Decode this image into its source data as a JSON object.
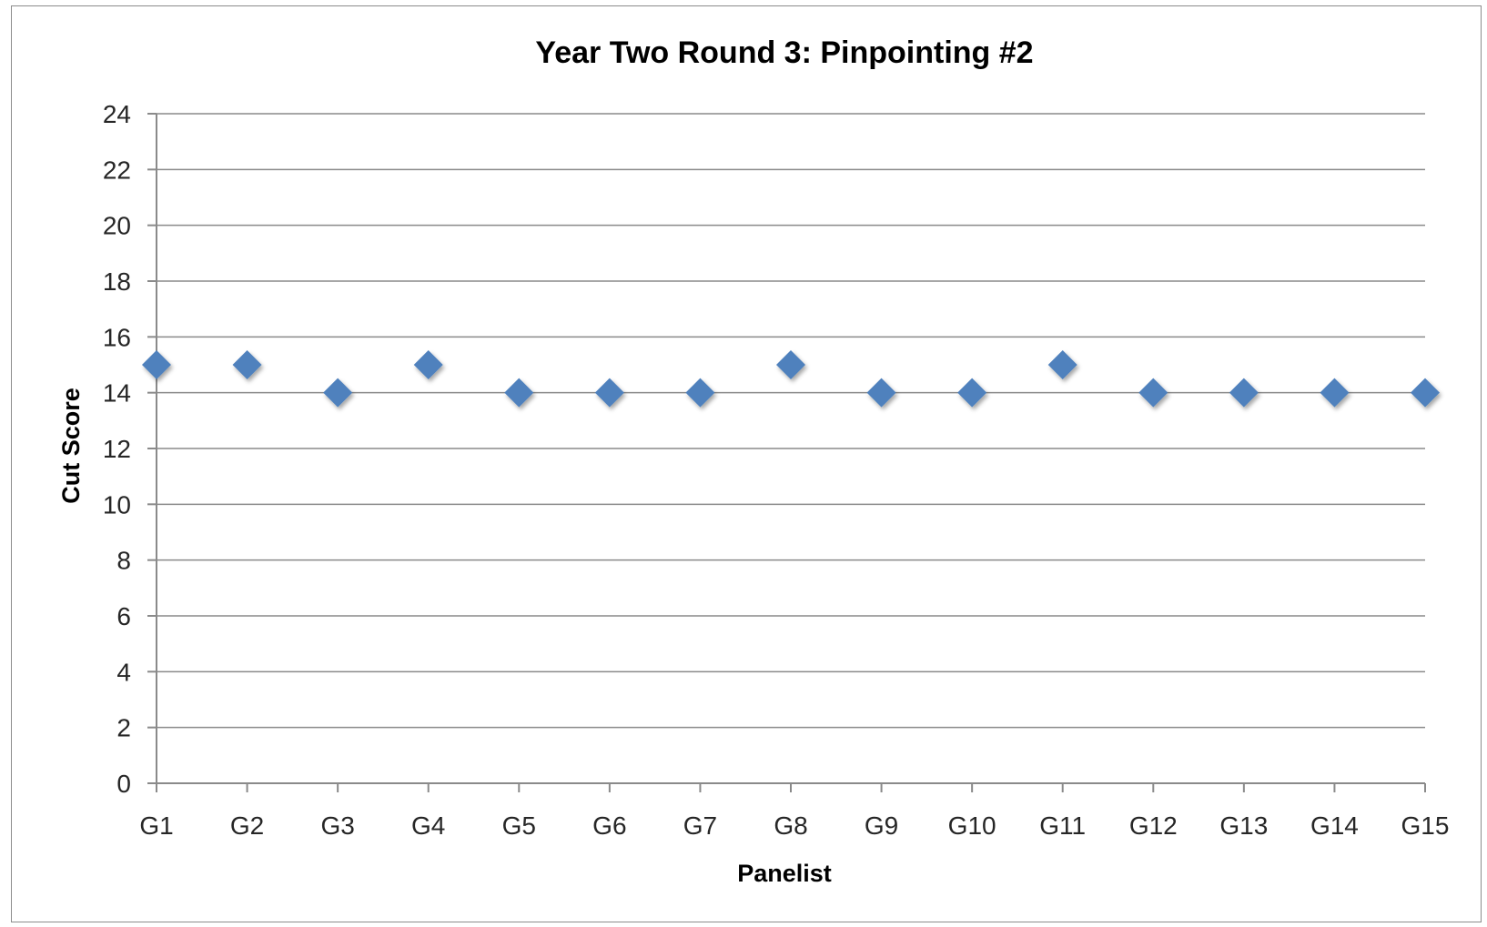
{
  "chart_data": {
    "type": "scatter",
    "title": "Year Two Round 3: Pinpointing #2",
    "xlabel": "Panelist",
    "ylabel": "Cut Score",
    "categories": [
      "G1",
      "G2",
      "G3",
      "G4",
      "G5",
      "G6",
      "G7",
      "G8",
      "G9",
      "G10",
      "G11",
      "G12",
      "G13",
      "G14",
      "G15"
    ],
    "values": [
      15,
      15,
      14,
      15,
      14,
      14,
      14,
      15,
      14,
      14,
      15,
      14,
      14,
      14,
      14
    ],
    "ylim": [
      0,
      24
    ],
    "yticks": [
      0,
      2,
      4,
      6,
      8,
      10,
      12,
      14,
      16,
      18,
      20,
      22,
      24
    ],
    "grid": true,
    "marker": "diamond",
    "colors": {
      "marker": "#4f81bd",
      "grid": "#8a8a8a"
    }
  }
}
